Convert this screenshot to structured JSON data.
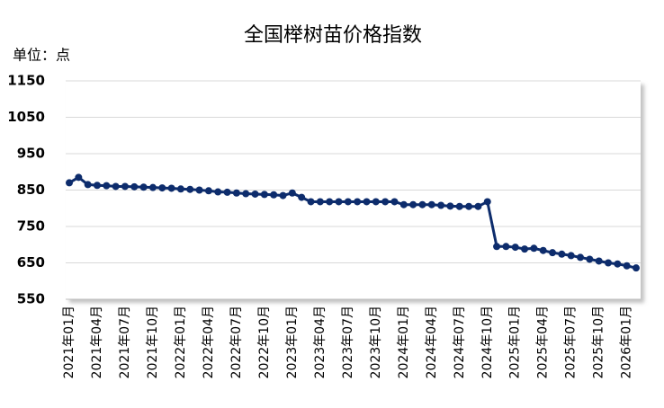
{
  "chart_data": {
    "type": "line",
    "title": "全国榉树苗价格指数",
    "unit_label": "单位：点",
    "categories": [
      "2021年01月",
      null,
      null,
      "2021年04月",
      null,
      null,
      "2021年07月",
      null,
      null,
      "2021年10月",
      null,
      null,
      "2022年01月",
      null,
      null,
      "2022年04月",
      null,
      null,
      "2022年07月",
      null,
      null,
      "2022年10月",
      null,
      null,
      "2023年01月",
      null,
      null,
      "2023年04月",
      null,
      null,
      "2023年07月",
      null,
      null,
      "2023年10月",
      null,
      null,
      "2024年01月",
      null,
      null,
      "2024年04月",
      null,
      null,
      "2024年07月",
      null,
      null,
      "2024年10月",
      null,
      null,
      "2025年01月",
      null,
      null,
      "2025年04月",
      null,
      null,
      "2025年07月",
      null,
      null,
      "2025年10月",
      null,
      null,
      "2026年01月",
      null
    ],
    "series": [
      {
        "name": "全国榉树苗价格指数",
        "color": "#0d2c6c",
        "values": [
          870,
          885,
          865,
          863,
          862,
          860,
          860,
          859,
          858,
          857,
          856,
          855,
          853,
          852,
          850,
          848,
          845,
          844,
          842,
          840,
          839,
          838,
          837,
          835,
          842,
          830,
          818,
          818,
          818,
          818,
          818,
          818,
          818,
          818,
          818,
          818,
          810,
          810,
          810,
          810,
          808,
          806,
          805,
          805,
          805,
          818,
          695,
          695,
          693,
          688,
          690,
          684,
          678,
          674,
          670,
          665,
          660,
          655,
          650,
          647,
          642,
          636
        ]
      }
    ],
    "ylim": [
      550,
      1150
    ],
    "yticks": [
      550,
      650,
      750,
      850,
      950,
      1050,
      1150
    ],
    "grid": true
  }
}
